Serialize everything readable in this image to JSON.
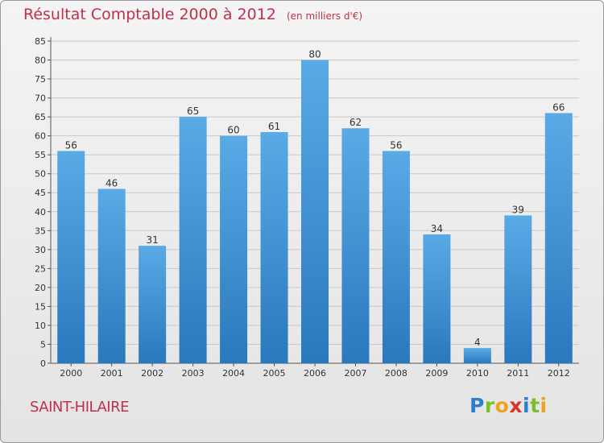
{
  "page": {
    "title": "Résultat Comptable 2000 à 2012",
    "unit": "(en milliers d'€)",
    "commune": "SAINT-HILAIRE",
    "logo_letters": [
      {
        "ch": "P",
        "color": "#2a7fd0"
      },
      {
        "ch": "r",
        "color": "#7bbf2a"
      },
      {
        "ch": "o",
        "color": "#f0a21e"
      },
      {
        "ch": "x",
        "color": "#d8342c"
      },
      {
        "ch": "i",
        "color": "#2a7fd0"
      },
      {
        "ch": "t",
        "color": "#7bbf2a"
      },
      {
        "ch": "i",
        "color": "#f0a21e"
      }
    ]
  },
  "chart_data": {
    "type": "bar",
    "title": "Résultat Comptable 2000 à 2012",
    "subtitle": "(en milliers d'€)",
    "xlabel": "",
    "ylabel": "",
    "categories": [
      "2000",
      "2001",
      "2002",
      "2003",
      "2004",
      "2005",
      "2006",
      "2007",
      "2008",
      "2009",
      "2010",
      "2011",
      "2012"
    ],
    "values": [
      56,
      46,
      31,
      65,
      60,
      61,
      80,
      62,
      56,
      34,
      4,
      39,
      66
    ],
    "ylim": [
      0,
      85
    ],
    "yticks": [
      0,
      5,
      10,
      15,
      20,
      25,
      30,
      35,
      40,
      45,
      50,
      55,
      60,
      65,
      70,
      75,
      80,
      85
    ],
    "grid": true,
    "colors": {
      "bar_top": "#5aaae6",
      "bar_bottom": "#2a78bd",
      "grid": "#c8c8c8",
      "text": "#333333"
    }
  }
}
